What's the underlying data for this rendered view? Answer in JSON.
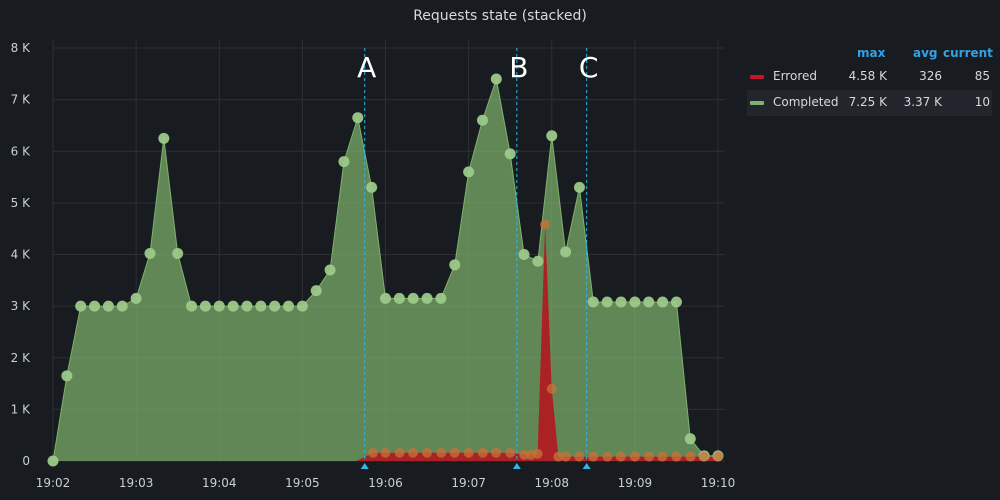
{
  "panel": {
    "title": "Requests state (stacked)"
  },
  "legend": {
    "headers": {
      "max": "max",
      "avg": "avg",
      "current": "current"
    },
    "rows": [
      {
        "name": "Errored",
        "max": "4.58 K",
        "avg": "326",
        "current": "85",
        "color": "#c4162a"
      },
      {
        "name": "Completed",
        "max": "7.25 K",
        "avg": "3.37 K",
        "current": "10",
        "color": "#7eb26d"
      }
    ]
  },
  "chart_data": {
    "type": "area",
    "stacked": true,
    "title": "Requests state (stacked)",
    "x_ticks": [
      "19:02",
      "19:03",
      "19:04",
      "19:05",
      "19:06",
      "19:07",
      "19:08",
      "19:09",
      "19:10"
    ],
    "y_ticks": [
      "0",
      "1 K",
      "2 K",
      "3 K",
      "4 K",
      "5 K",
      "6 K",
      "7 K",
      "8 K"
    ],
    "ylim": [
      0,
      8000
    ],
    "grid": true,
    "legend_position": "right",
    "x_minutes_after_1902": [
      0,
      0.1667,
      0.3333,
      0.5,
      0.6667,
      0.8333,
      1,
      1.1667,
      1.3333,
      1.5,
      1.6667,
      1.8333,
      2,
      2.1667,
      2.3333,
      2.5,
      2.6667,
      2.8333,
      3,
      3.1667,
      3.3333,
      3.5,
      3.6667,
      3.8333,
      4,
      4.1667,
      4.3333,
      4.5,
      4.6667,
      4.8333,
      5,
      5.1667,
      5.3333,
      5.5,
      5.6667,
      5.8333,
      6,
      6.1667,
      6.3333,
      6.5,
      6.6667,
      6.8333,
      7,
      7.1667,
      7.3333,
      7.5,
      7.6667,
      7.8333,
      8
    ],
    "series": [
      {
        "name": "Errored",
        "color": "#c4162a",
        "values": [
          0,
          0,
          0,
          0,
          0,
          0,
          0,
          0,
          0,
          0,
          0,
          0,
          0,
          0,
          0,
          0,
          0,
          0,
          0,
          0,
          0,
          0,
          0,
          0,
          0,
          0,
          0,
          0,
          0,
          0,
          0,
          0,
          0,
          0,
          0,
          0,
          0,
          0,
          0,
          0,
          0,
          0,
          0,
          0,
          0,
          0,
          0,
          0,
          0
        ]
      },
      {
        "name": "Completed",
        "color": "#7eb26d",
        "values": [
          0,
          1650,
          3000,
          3000,
          3000,
          3000,
          3150,
          4020,
          6250,
          4020,
          3000,
          3000,
          3000,
          3000,
          3000,
          3000,
          3000,
          3000,
          3000,
          3300,
          3700,
          5800,
          6650,
          5300,
          3150,
          3150,
          3150,
          3150,
          3150,
          3800,
          5600,
          6600,
          7400,
          5950,
          4000,
          3870,
          6300,
          4050,
          5300,
          3080,
          3080,
          3080,
          3080,
          3080,
          3080,
          3080,
          430,
          100,
          100
        ]
      }
    ],
    "errored_x_minutes_after_1902": [
      3.65,
      3.85,
      4.0,
      4.17,
      4.33,
      4.5,
      4.67,
      4.83,
      5.0,
      5.17,
      5.33,
      5.5,
      5.67,
      5.75,
      5.83,
      5.92,
      6.0,
      6.08,
      6.17,
      6.33,
      6.5,
      6.67,
      6.83,
      7.0,
      7.17,
      7.33,
      7.5,
      7.67,
      7.83,
      8.0
    ],
    "errored_values": [
      0,
      160,
      160,
      160,
      160,
      160,
      160,
      160,
      160,
      160,
      160,
      160,
      120,
      120,
      140,
      4580,
      1400,
      85,
      85,
      85,
      85,
      85,
      85,
      85,
      85,
      85,
      85,
      85,
      85,
      85
    ],
    "annotations": [
      {
        "label": "A",
        "x_minutes_after_1902": 3.75
      },
      {
        "label": "B",
        "x_minutes_after_1902": 5.58
      },
      {
        "label": "C",
        "x_minutes_after_1902": 6.42
      }
    ]
  }
}
